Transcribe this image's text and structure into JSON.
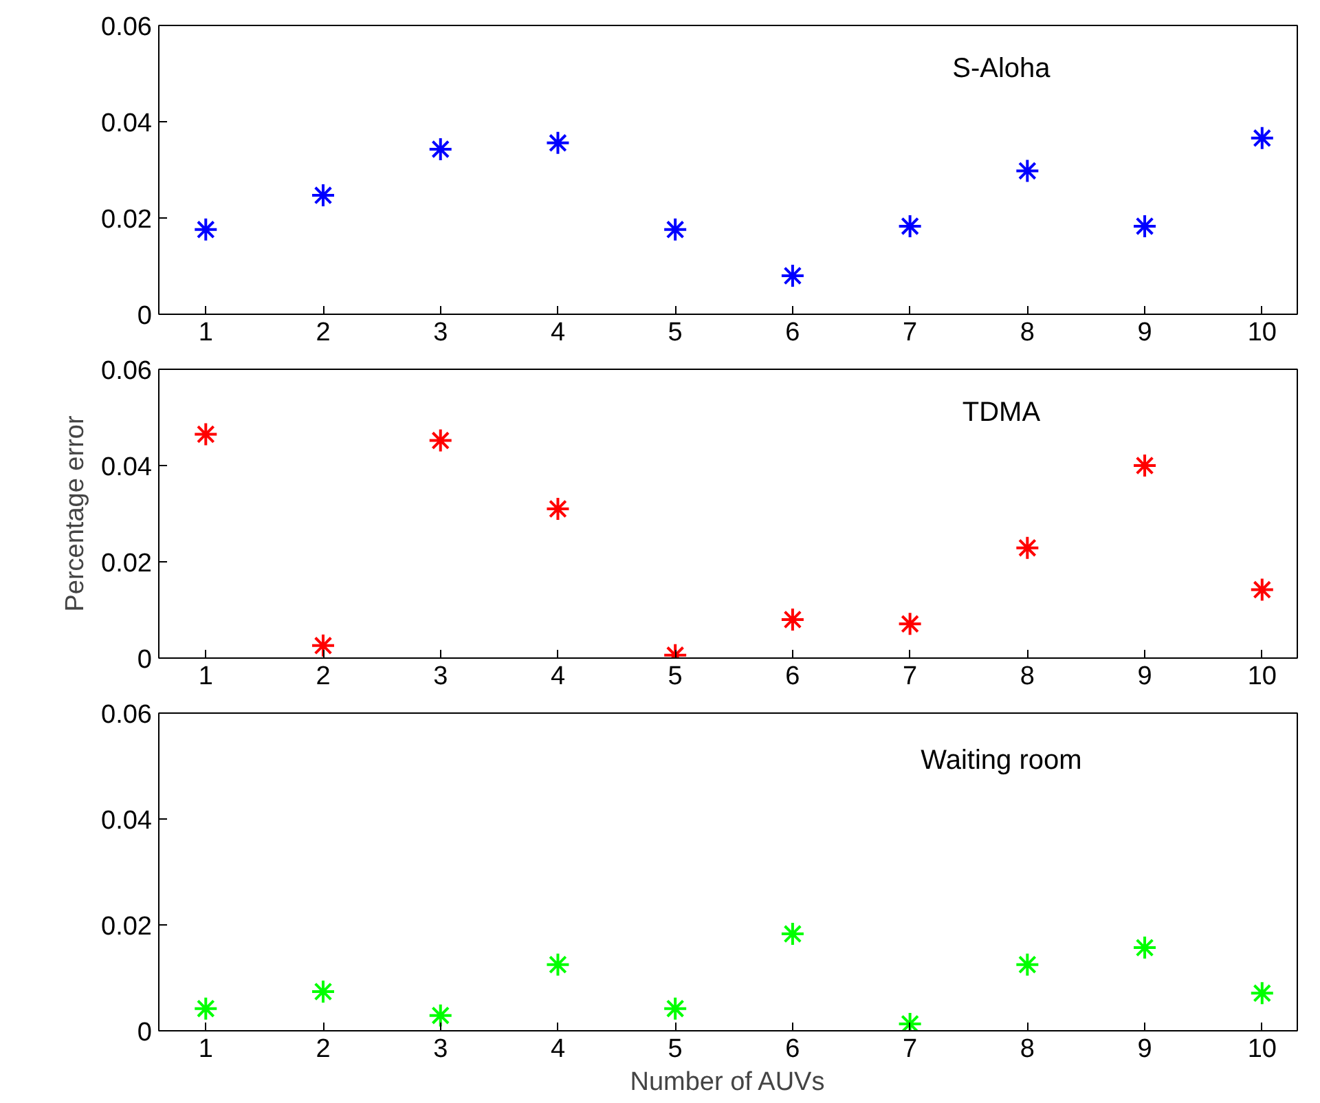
{
  "chart_data": [
    {
      "type": "scatter",
      "title": "S-Aloha",
      "x": [
        1,
        2,
        3,
        4,
        5,
        6,
        7,
        8,
        9,
        10
      ],
      "xlim": [
        0.6,
        10.3
      ],
      "xticks": [
        1,
        2,
        3,
        4,
        5,
        6,
        7,
        8,
        9,
        10
      ],
      "ylim": [
        0,
        0.06
      ],
      "yticks": [
        {
          "value": 0,
          "label": "0"
        },
        {
          "value": 0.02,
          "label": "0.02"
        },
        {
          "value": 0.04,
          "label": "0.04"
        },
        {
          "value": 0.06,
          "label": "0.06"
        }
      ],
      "marker": "cross",
      "series": [
        {
          "color": "#0000ff",
          "values": [
            0.0176,
            0.0247,
            0.0343,
            0.0356,
            0.0176,
            0.008,
            0.0183,
            0.0298,
            0.0183,
            0.0366
          ]
        }
      ]
    },
    {
      "type": "scatter",
      "title": "TDMA",
      "ylabel": "Percentage error",
      "x": [
        1,
        2,
        3,
        4,
        5,
        6,
        7,
        8,
        9,
        10
      ],
      "xlim": [
        0.6,
        10.3
      ],
      "xticks": [
        1,
        2,
        3,
        4,
        5,
        6,
        7,
        8,
        9,
        10
      ],
      "ylim": [
        0,
        0.06
      ],
      "yticks": [
        {
          "value": 0,
          "label": "0"
        },
        {
          "value": 0.02,
          "label": "0.02"
        },
        {
          "value": 0.04,
          "label": "0.04"
        },
        {
          "value": 0.06,
          "label": "0.06"
        }
      ],
      "marker": "cross",
      "series": [
        {
          "color": "#ff0000",
          "values": [
            0.0465,
            0.0026,
            0.0452,
            0.031,
            0.0006,
            0.008,
            0.0071,
            0.0229,
            0.04,
            0.0142
          ]
        }
      ]
    },
    {
      "type": "scatter",
      "title": "Waiting room",
      "xlabel": "Number of AUVs",
      "x": [
        1,
        2,
        3,
        4,
        5,
        6,
        7,
        8,
        9,
        10
      ],
      "xlim": [
        0.6,
        10.3
      ],
      "xticks": [
        1,
        2,
        3,
        4,
        5,
        6,
        7,
        8,
        9,
        10
      ],
      "ylim": [
        0,
        0.06
      ],
      "yticks": [
        {
          "value": 0,
          "label": "0"
        },
        {
          "value": 0.02,
          "label": "0.02"
        },
        {
          "value": 0.04,
          "label": "0.04"
        },
        {
          "value": 0.06,
          "label": "0.06"
        }
      ],
      "marker": "cross",
      "series": [
        {
          "color": "#00ff00",
          "values": [
            0.0042,
            0.0074,
            0.0029,
            0.0125,
            0.0042,
            0.0183,
            0.0013,
            0.0125,
            0.0157,
            0.0071
          ]
        }
      ]
    }
  ]
}
